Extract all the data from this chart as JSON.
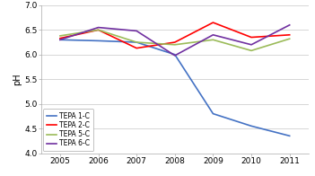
{
  "years": [
    2005,
    2006,
    2007,
    2008,
    2009,
    2010,
    2011
  ],
  "series": {
    "TEPA 1-C": {
      "values": [
        6.3,
        6.28,
        6.25,
        6.0,
        4.8,
        4.55,
        4.35
      ],
      "color": "#4472C4"
    },
    "TEPA 2-C": {
      "values": [
        6.33,
        6.5,
        6.13,
        6.25,
        6.65,
        6.35,
        6.4
      ],
      "color": "#FF0000"
    },
    "TEPA 5-C": {
      "values": [
        6.38,
        6.5,
        6.25,
        6.2,
        6.3,
        6.08,
        6.32
      ],
      "color": "#9BBB59"
    },
    "TEPA 6-C": {
      "values": [
        6.3,
        6.55,
        6.48,
        5.98,
        6.4,
        6.2,
        6.6
      ],
      "color": "#7030A0"
    }
  },
  "ylabel": "pH",
  "ylim": [
    4.0,
    7.0
  ],
  "yticks": [
    4.0,
    4.5,
    5.0,
    5.5,
    6.0,
    6.5,
    7.0
  ],
  "xlim": [
    2004.5,
    2011.5
  ],
  "legend_loc": "lower left",
  "bg_color": "#FFFFFF",
  "grid_color": "#D0D0D0",
  "line_width": 1.2
}
